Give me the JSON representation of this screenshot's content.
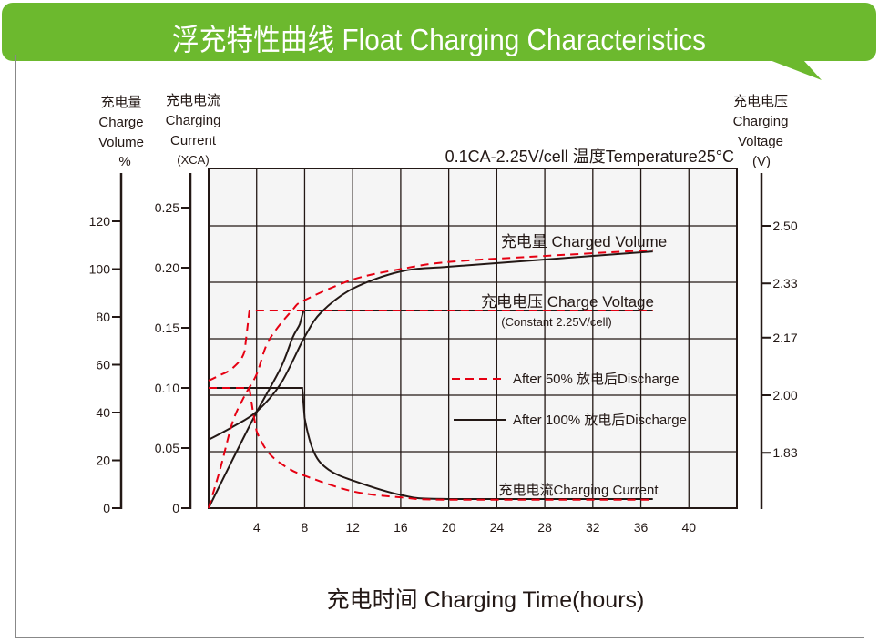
{
  "header": {
    "title": "浮充特性曲线  Float Charging Characteristics",
    "color": "#6cb92e"
  },
  "chart_data": {
    "type": "line",
    "title": "0.1CA-2.25V/cell   温度Temperature25°C",
    "xlabel": "充电时间  Charging Time(hours)",
    "xlim": [
      0,
      44
    ],
    "xticks": [
      "4",
      "8",
      "12",
      "16",
      "20",
      "24",
      "28",
      "32",
      "36",
      "40"
    ],
    "grid": true,
    "axes": {
      "volume": {
        "label_cn": "充电量",
        "label_en1": "Charge",
        "label_en2": "Volume",
        "unit": "%",
        "ticks": [
          "0",
          "20",
          "40",
          "60",
          "80",
          "100",
          "120"
        ],
        "ylim": [
          0,
          140
        ]
      },
      "current": {
        "label_cn": "充电电流",
        "label_en1": "Charging",
        "label_en2": "Current",
        "unit": "(XCA)",
        "ticks": [
          "0",
          "0.05",
          "0.10",
          "0.15",
          "0.20",
          "0.25"
        ],
        "ylim": [
          0,
          0.28
        ]
      },
      "voltage": {
        "label_cn": "充电电压",
        "label_en1": "Charging",
        "label_en2": "Voltage",
        "unit": "(V)",
        "ticks": [
          "1.83",
          "2.00",
          "2.17",
          "2.33",
          "2.50"
        ],
        "ylim": [
          1.67,
          2.6
        ]
      }
    },
    "annotations": {
      "volume": "充电量 Charged Volume",
      "voltage": "充电电压 Charge Voltage",
      "voltage_note": "(Constant 2.25V/cell)",
      "current": "充电电流Charging Current"
    },
    "legend": [
      {
        "name": "After 50% 放电后Discharge",
        "style": "dashed",
        "color": "#e60012"
      },
      {
        "name": "After 100% 放电后Discharge",
        "style": "solid",
        "color": "#231815"
      }
    ],
    "series": [
      {
        "group": "After 100%",
        "quantity": "volume",
        "axis": "volume",
        "points": [
          [
            0,
            28.6
          ],
          [
            2,
            34
          ],
          [
            4,
            40.4
          ],
          [
            6,
            52
          ],
          [
            8,
            71.6
          ],
          [
            9.4,
            82
          ],
          [
            12,
            91.8
          ],
          [
            16,
            99
          ],
          [
            20,
            101
          ],
          [
            28,
            104
          ],
          [
            37,
            107.4
          ]
        ]
      },
      {
        "group": "After 100%",
        "quantity": "voltage",
        "axis": "voltage",
        "points": [
          [
            0,
            1.667
          ],
          [
            2,
            1.81
          ],
          [
            4,
            1.95
          ],
          [
            6,
            2.08
          ],
          [
            7,
            2.17
          ],
          [
            7.6,
            2.21
          ],
          [
            7.9,
            2.25
          ],
          [
            37,
            2.25
          ]
        ]
      },
      {
        "group": "After 100%",
        "quantity": "current",
        "axis": "current",
        "points": [
          [
            0,
            0.1
          ],
          [
            7.8,
            0.1
          ],
          [
            8,
            0.075
          ],
          [
            8.8,
            0.046
          ],
          [
            10,
            0.032
          ],
          [
            12,
            0.023
          ],
          [
            16,
            0.011
          ],
          [
            20,
            0.0076
          ],
          [
            37,
            0.0076
          ]
        ]
      },
      {
        "group": "After 50%",
        "quantity": "volume",
        "axis": "volume",
        "points": [
          [
            0,
            0
          ],
          [
            1,
            17
          ],
          [
            2,
            36
          ],
          [
            3,
            47
          ],
          [
            4,
            56
          ],
          [
            5,
            70
          ],
          [
            7,
            83
          ],
          [
            8,
            87
          ],
          [
            12,
            95.6
          ],
          [
            16,
            100
          ],
          [
            20,
            103
          ],
          [
            28,
            105.5
          ],
          [
            37,
            108
          ]
        ]
      },
      {
        "group": "After 50%",
        "quantity": "voltage",
        "axis": "voltage",
        "points": [
          [
            0,
            2.043
          ],
          [
            1,
            2.06
          ],
          [
            2,
            2.08
          ],
          [
            3,
            2.13
          ],
          [
            3.4,
            2.25
          ],
          [
            37,
            2.25
          ]
        ]
      },
      {
        "group": "After 50%",
        "quantity": "current",
        "axis": "current",
        "points": [
          [
            0,
            0.1
          ],
          [
            3.4,
            0.1
          ],
          [
            3.7,
            0.08
          ],
          [
            4,
            0.064
          ],
          [
            5,
            0.046
          ],
          [
            6.5,
            0.034
          ],
          [
            8,
            0.027
          ],
          [
            12,
            0.014
          ],
          [
            16,
            0.009
          ],
          [
            20,
            0.007
          ],
          [
            37,
            0.007
          ]
        ]
      }
    ]
  }
}
